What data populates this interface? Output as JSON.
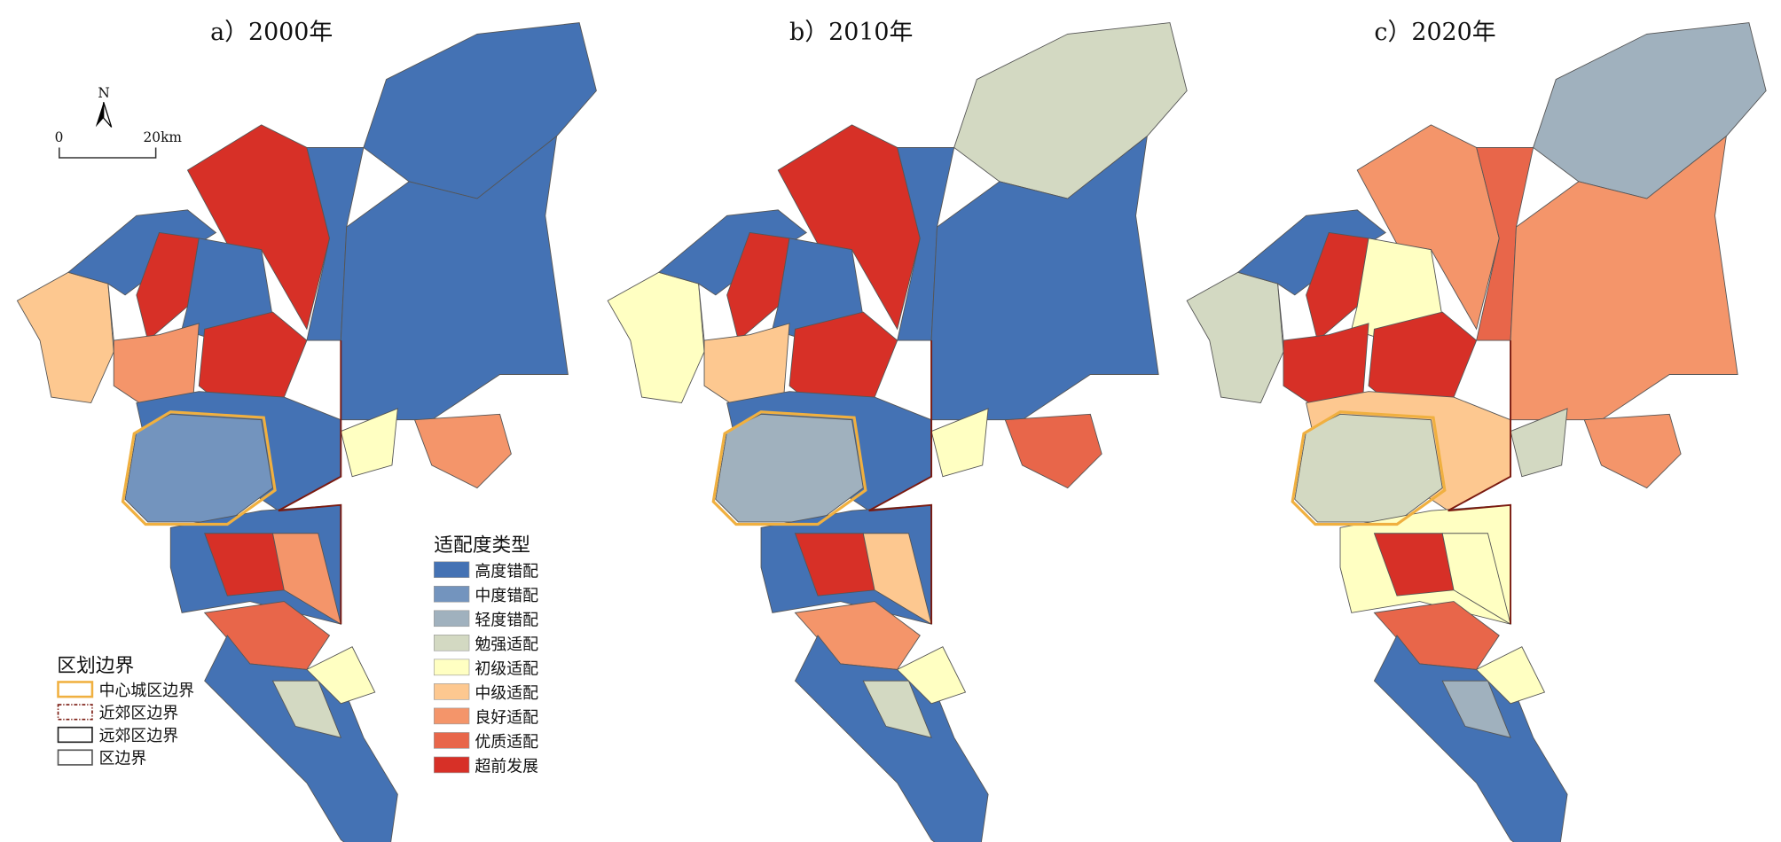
{
  "maps": [
    {
      "title": "a）2000年",
      "region_classes": [
        5,
        0,
        8,
        8,
        0,
        6,
        8,
        0,
        0,
        0,
        4,
        6,
        0,
        1,
        0,
        8,
        6,
        7,
        0,
        4,
        3
      ]
    },
    {
      "title": "b）2010年",
      "region_classes": [
        4,
        0,
        8,
        8,
        0,
        5,
        8,
        0,
        3,
        0,
        4,
        7,
        0,
        2,
        0,
        8,
        5,
        6,
        0,
        4,
        3
      ]
    },
    {
      "title": "c）2020年",
      "region_classes": [
        3,
        0,
        8,
        6,
        4,
        8,
        8,
        7,
        2,
        6,
        3,
        6,
        5,
        3,
        4,
        8,
        4,
        7,
        0,
        4,
        2
      ]
    }
  ],
  "north_arrow": {
    "label": "N"
  },
  "scale_bar": {
    "start": "0",
    "end": "20km"
  },
  "legend_fit": {
    "title": "适配度类型",
    "items": [
      {
        "label": "高度错配",
        "color": "#4472b4"
      },
      {
        "label": "中度错配",
        "color": "#7394be"
      },
      {
        "label": "轻度错配",
        "color": "#a0b1be"
      },
      {
        "label": "勉强适配",
        "color": "#d3d9c2"
      },
      {
        "label": "初级适配",
        "color": "#ffffc2"
      },
      {
        "label": "中级适配",
        "color": "#fdc890"
      },
      {
        "label": "良好适配",
        "color": "#f4956a"
      },
      {
        "label": "优质适配",
        "color": "#e8664a"
      },
      {
        "label": "超前发展",
        "color": "#d73027"
      }
    ]
  },
  "legend_boundary": {
    "title": "区划边界",
    "items": [
      {
        "label": "中心城区边界",
        "color": "#f0b040"
      },
      {
        "label": "近郊区边界",
        "color": "#7a1a10"
      },
      {
        "label": "远郊区边界",
        "color": "#222222"
      },
      {
        "label": "区边界",
        "color": "#555555"
      }
    ]
  }
}
